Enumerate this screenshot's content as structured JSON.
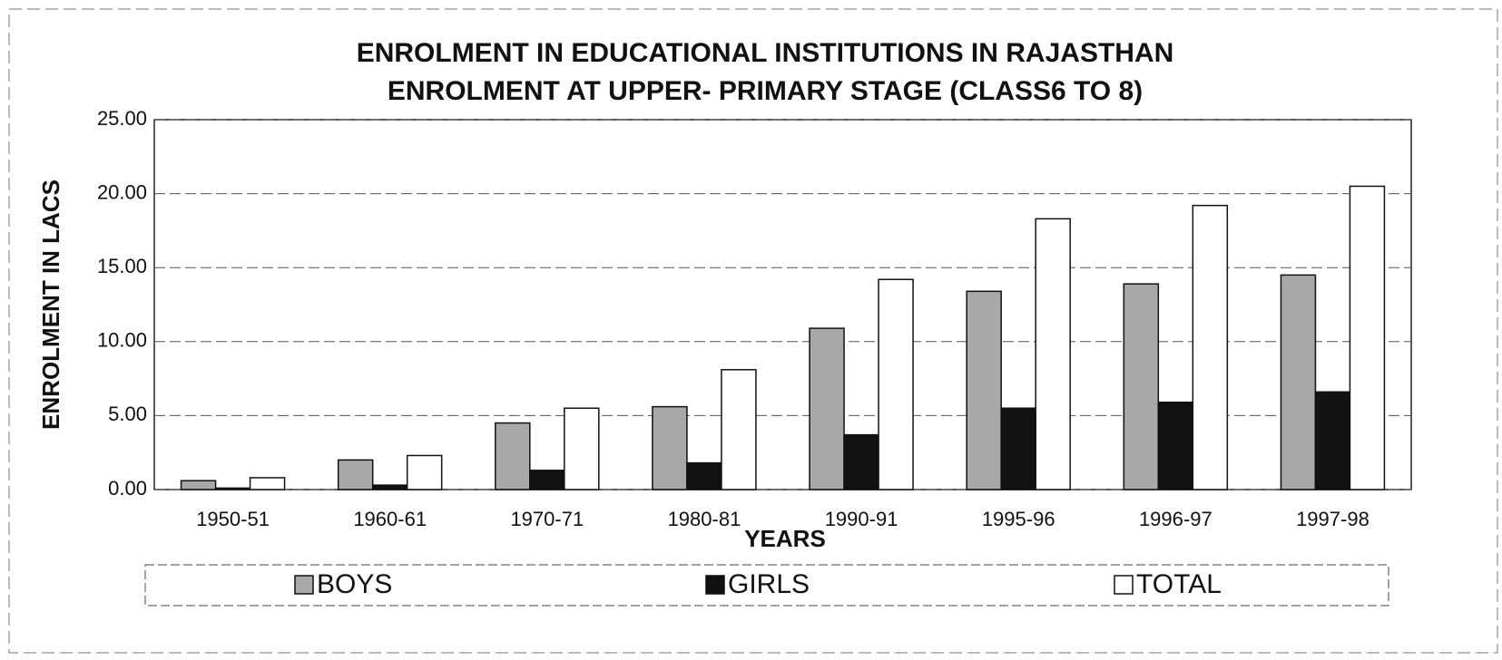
{
  "chart_data": {
    "type": "bar",
    "title": "ENROLMENT IN EDUCATIONAL INSTITUTIONS IN RAJASTHAN",
    "subtitle": "ENROLMENT AT UPPER- PRIMARY STAGE (CLASS6 TO 8)",
    "x_label": "YEARS",
    "y_label": "ENROLMENT IN LACS",
    "categories": [
      "1950-51",
      "1960-61",
      "1970-71",
      "1980-81",
      "1990-91",
      "1995-96",
      "1996-97",
      "1997-98"
    ],
    "series": [
      {
        "name": "BOYS",
        "color": "#a8a8a8",
        "values": [
          0.6,
          2.0,
          4.5,
          5.6,
          10.9,
          13.4,
          13.9,
          14.5
        ]
      },
      {
        "name": "GIRLS",
        "color": "#111111",
        "values": [
          0.1,
          0.3,
          1.3,
          1.8,
          3.7,
          5.5,
          5.9,
          6.6
        ]
      },
      {
        "name": "TOTAL",
        "color": "#ffffff",
        "values": [
          0.8,
          2.3,
          5.5,
          8.1,
          14.2,
          18.3,
          19.2,
          20.5
        ]
      }
    ],
    "ylim": [
      0,
      25
    ],
    "yticks": [
      {
        "value": 0,
        "label": "0.00"
      },
      {
        "value": 5,
        "label": "5.00"
      },
      {
        "value": 10,
        "label": "10.00"
      },
      {
        "value": 15,
        "label": "15.00"
      },
      {
        "value": 20,
        "label": "20.00"
      },
      {
        "value": 25,
        "label": "25.00"
      }
    ],
    "grid": true,
    "legend": "bottom"
  }
}
